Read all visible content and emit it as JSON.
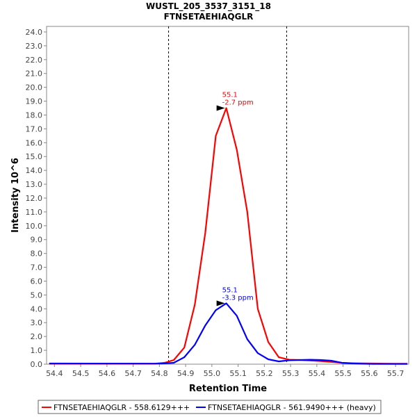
{
  "chart_data": {
    "type": "line",
    "title": "WUSTL_205_3537_3151_18",
    "subtitle": "FTNSETAEHIAQGLR",
    "xlabel": "Retention Time",
    "ylabel": "Intensity 10^6",
    "xlim": [
      54.37,
      55.75
    ],
    "ylim": [
      0,
      24.4
    ],
    "x_ticks": [
      "54.4",
      "54.5",
      "54.6",
      "54.7",
      "54.8",
      "54.9",
      "55.0",
      "55.1",
      "55.2",
      "55.3",
      "55.4",
      "55.5",
      "55.6",
      "55.7"
    ],
    "y_ticks": [
      "0.0",
      "1.0",
      "2.0",
      "3.0",
      "4.0",
      "5.0",
      "6.0",
      "7.0",
      "8.0",
      "9.0",
      "10.0",
      "11.0",
      "12.0",
      "13.0",
      "14.0",
      "15.0",
      "16.0",
      "17.0",
      "18.0",
      "19.0",
      "20.0",
      "21.0",
      "22.0",
      "23.0",
      "24.0"
    ],
    "boundaries": [
      54.835,
      55.285
    ],
    "grid": false,
    "legend_position": "bottom",
    "series": [
      {
        "name": "FTNSETAEHIAQGLR - 558.6129+++",
        "color": "#ff0000",
        "x": [
          54.38,
          54.78,
          54.82,
          54.855,
          54.895,
          54.935,
          54.975,
          55.015,
          55.055,
          55.095,
          55.135,
          55.175,
          55.215,
          55.255,
          55.295,
          55.335,
          55.375,
          55.415,
          55.455,
          55.495,
          55.535,
          55.575,
          55.615,
          55.655,
          55.695,
          55.745
        ],
        "y": [
          0.03,
          0.03,
          0.1,
          0.3,
          1.2,
          4.3,
          9.5,
          16.5,
          18.5,
          15.5,
          11.0,
          4.0,
          1.6,
          0.5,
          0.32,
          0.3,
          0.26,
          0.22,
          0.16,
          0.1,
          0.07,
          0.06,
          0.05,
          0.04,
          0.03,
          0.03
        ]
      },
      {
        "name": "FTNSETAEHIAQGLR - 561.9490+++ (heavy)",
        "color": "#0000ff",
        "x": [
          54.38,
          54.78,
          54.815,
          54.855,
          54.895,
          54.935,
          54.975,
          55.015,
          55.055,
          55.095,
          55.135,
          55.175,
          55.215,
          55.255,
          55.295,
          55.335,
          55.375,
          55.415,
          55.455,
          55.495,
          55.535,
          55.575,
          55.615,
          55.655,
          55.695,
          55.745
        ],
        "y": [
          0.05,
          0.04,
          0.05,
          0.1,
          0.5,
          1.4,
          2.8,
          3.9,
          4.4,
          3.5,
          1.8,
          0.8,
          0.35,
          0.2,
          0.28,
          0.3,
          0.32,
          0.3,
          0.25,
          0.1,
          0.05,
          0.03,
          0.02,
          0.02,
          0.02,
          0.02
        ]
      }
    ],
    "annotations": [
      {
        "series": 0,
        "x": 55.055,
        "y": 18.5,
        "lines": [
          "55.1",
          "-2.7 ppm"
        ]
      },
      {
        "series": 1,
        "x": 55.055,
        "y": 4.4,
        "lines": [
          "55.1",
          "-3.3 ppm"
        ]
      }
    ]
  }
}
